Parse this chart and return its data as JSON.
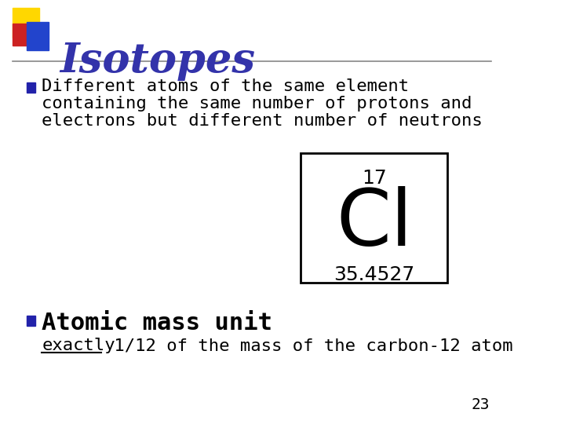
{
  "title": "Isotopes",
  "title_color": "#3333AA",
  "title_fontsize": 38,
  "background_color": "#FFFFFF",
  "bullet_color": "#2222AA",
  "bullet1_text_line1": "Different atoms of the same element",
  "bullet1_text_line2": "containing the same number of protons and",
  "bullet1_text_line3": "electrons but different number of neutrons",
  "element_symbol": "Cl",
  "element_number": "17",
  "element_mass": "35.4527",
  "bullet2_bold": "Atomic mass unit",
  "bullet2_sub_underline": "exactly",
  "bullet2_sub_rest": " 1/12 of the mass of the carbon-12 atom",
  "page_number": "23",
  "box_color": "#000000",
  "text_color": "#000000",
  "header_line_color": "#888888",
  "square_yellow": "#FFD700",
  "square_red": "#CC2222",
  "square_blue": "#2244CC"
}
